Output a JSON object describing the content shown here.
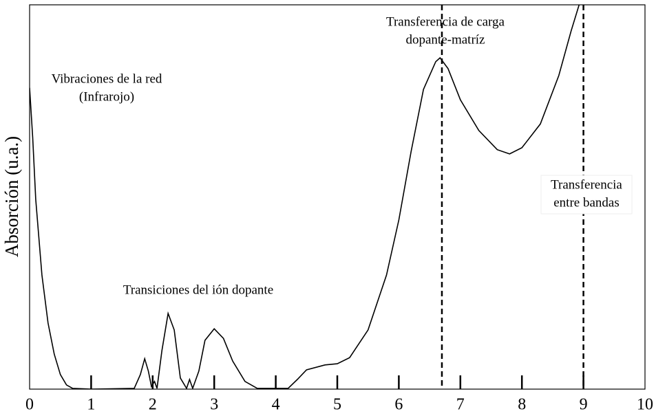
{
  "chart_data": {
    "type": "line",
    "y_label": "Absorción (u.a.)",
    "x": [
      0,
      0.05,
      0.1,
      0.2,
      0.3,
      0.4,
      0.5,
      0.6,
      0.7,
      1.0,
      1.7,
      1.8,
      1.87,
      1.93,
      1.98,
      2.03,
      2.07,
      2.15,
      2.25,
      2.35,
      2.45,
      2.55,
      2.6,
      2.65,
      2.75,
      2.85,
      3.0,
      3.15,
      3.3,
      3.5,
      3.7,
      4.2,
      4.35,
      4.5,
      4.8,
      5.0,
      5.2,
      5.5,
      5.8,
      6.0,
      6.2,
      6.4,
      6.6,
      6.67,
      6.8,
      7.0,
      7.3,
      7.6,
      7.8,
      8.0,
      8.3,
      8.6,
      8.8,
      8.93
    ],
    "values": [
      78.4,
      65.5,
      49.4,
      29.7,
      17.2,
      9.1,
      3.8,
      1.1,
      0.2,
      0,
      0.2,
      3.8,
      7.9,
      4.7,
      0.7,
      2.0,
      0.2,
      10,
      19.7,
      15.4,
      2.9,
      0.2,
      2.5,
      0.2,
      4.7,
      12.7,
      15.7,
      13.2,
      7.3,
      2.0,
      0.2,
      0.2,
      2.5,
      5,
      6.3,
      6.6,
      8.2,
      15.4,
      29.7,
      44,
      61.9,
      78,
      85.2,
      86.2,
      83.4,
      75.3,
      67.3,
      62.3,
      61.2,
      62.8,
      69,
      81.6,
      93.2,
      100
    ],
    "color": "#000000",
    "xlim": [
      0,
      10
    ],
    "ylim": [
      0,
      100
    ],
    "xticks": [
      0,
      1,
      2,
      3,
      4,
      5,
      6,
      7,
      8,
      9,
      10
    ],
    "vlines": [
      6.7,
      9
    ],
    "annotations": [
      {
        "lines": [
          "Vibraciones de la red",
          "(Infrarojo)"
        ]
      },
      {
        "lines": [
          "Transiciones del ión dopante"
        ]
      },
      {
        "lines": [
          "Transferencia de carga",
          "dopante-matríz"
        ]
      },
      {
        "lines": [
          "Transferencia",
          "entre bandas"
        ]
      }
    ]
  }
}
